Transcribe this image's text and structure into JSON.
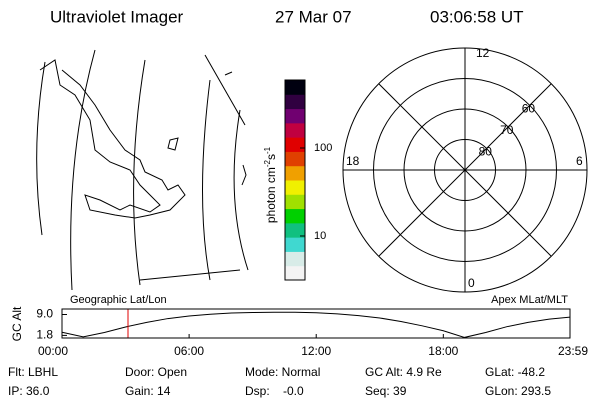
{
  "header": {
    "title": "Ultraviolet Imager",
    "date": "27 Mar 07",
    "time": "03:06:58 UT"
  },
  "colorbar": {
    "label": [
      "photon cm",
      "-2",
      "s",
      "-1"
    ],
    "log": true,
    "lim": [
      3.16,
      593
    ],
    "ticks": [
      10,
      100
    ],
    "colors": [
      "#f4f4f4",
      "#d8ece8",
      "#40d8d0",
      "#10c080",
      "#00d000",
      "#a0e000",
      "#f0f000",
      "#f0a000",
      "#e04000",
      "#e00000",
      "#c00040",
      "#700070",
      "#300040",
      "#000010"
    ]
  },
  "polar": {
    "mlt_labels": {
      "top": "12",
      "left": "18",
      "right": "6",
      "bottom": "0"
    },
    "ring_labels": [
      80,
      70,
      60
    ]
  },
  "chart_data": {
    "type": "line",
    "ylabel": "GC Alt",
    "left_title": "Geographic Lat/Lon",
    "right_title": "Apex MLat/MLT",
    "x": [
      0,
      1,
      2,
      3,
      4,
      5,
      6,
      7,
      8,
      9,
      10,
      11,
      12,
      13,
      14,
      15,
      16,
      17,
      18,
      19,
      20,
      21,
      22,
      23,
      23.98
    ],
    "values": [
      2.9,
      1.3,
      2.8,
      4.7,
      6.3,
      7.6,
      8.5,
      9.1,
      9.5,
      9.7,
      9.8,
      9.8,
      9.6,
      9.2,
      8.6,
      7.8,
      6.6,
      5.1,
      3.4,
      1.1,
      2.8,
      4.8,
      6.3,
      7.4,
      8.1
    ],
    "color": "#000000",
    "current_time": 3.116,
    "marker_color": "#e00000",
    "xlim": [
      0,
      23.98
    ],
    "ylim": [
      0.9,
      10.9
    ],
    "xticks": [
      {
        "value": 0,
        "label": "00:00"
      },
      {
        "value": 6,
        "label": "06:00"
      },
      {
        "value": 12,
        "label": "12:00"
      },
      {
        "value": 18,
        "label": "18:00"
      },
      {
        "value": 23.98,
        "label": "23:59"
      }
    ],
    "yticks": [
      {
        "value": 9,
        "label": "9.0"
      },
      1.8
    ]
  },
  "info": [
    [
      "Flt: LBHL",
      "Door: Open",
      "Mode: Normal",
      "GC Alt: 4.9 Re",
      "GLat: -48.2"
    ],
    [
      "IP: 36.0",
      "Gain: 14",
      "Dsp:    -0.0",
      "Seq: 39",
      "GLon: 293.5"
    ]
  ]
}
